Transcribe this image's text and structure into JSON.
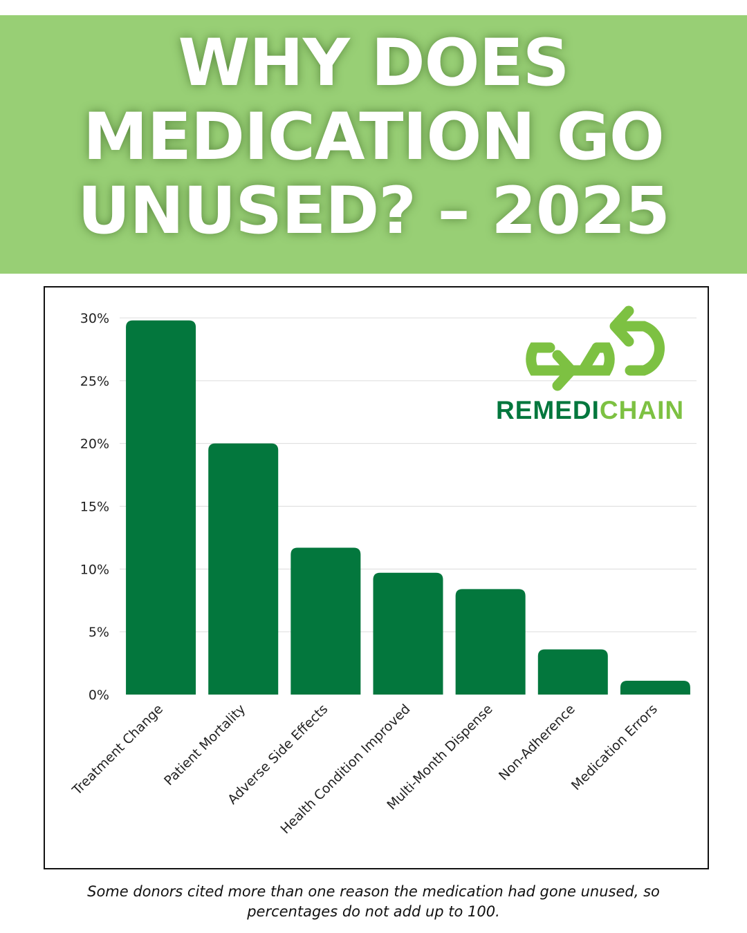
{
  "header": {
    "title_lines": [
      "WHY DOES",
      "MEDICATION GO",
      "UNUSED? – 2025"
    ]
  },
  "logo": {
    "text_part1": "REMEDI",
    "text_part2": "CHAIN"
  },
  "colors": {
    "header_bg": "#98cf75",
    "bar": "#03773d",
    "logo_green": "#7dc142",
    "logo_dark": "#03773d"
  },
  "chart_data": {
    "type": "bar",
    "categories": [
      "Treatment Change",
      "Patient Mortality",
      "Adverse Side Effects",
      "Health Condition Improved",
      "Multi-Month Dispense",
      "Non-Adherence",
      "Medication Errors"
    ],
    "values": [
      29.8,
      20.0,
      11.7,
      9.7,
      8.4,
      3.6,
      1.1
    ],
    "unit": "%",
    "ylim": [
      0,
      30
    ],
    "yticks": [
      0,
      5,
      10,
      15,
      20,
      25,
      30
    ],
    "ytick_labels": [
      "0%",
      "5%",
      "10%",
      "15%",
      "20%",
      "25%",
      "30%"
    ],
    "grid": true,
    "xlabel": "",
    "ylabel": ""
  },
  "footnote": "Some donors cited more than one reason the medication had gone unused, so percentages do not add up to 100."
}
